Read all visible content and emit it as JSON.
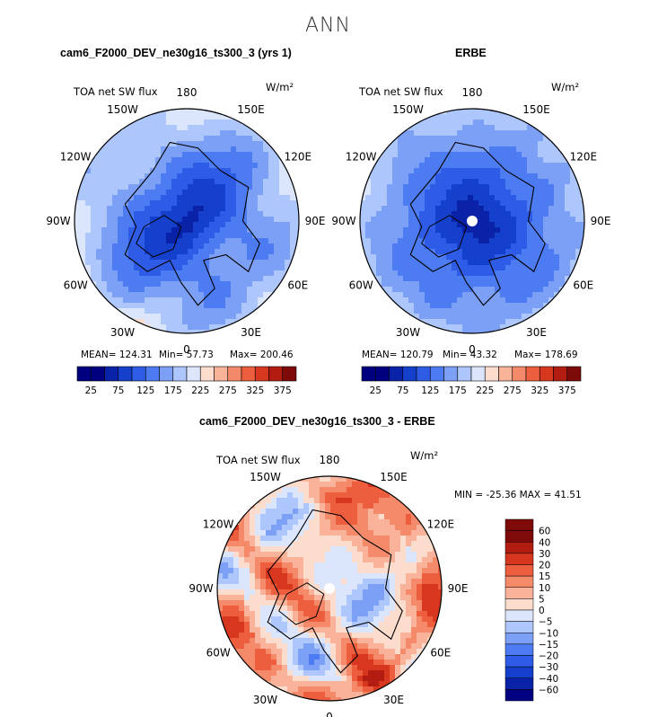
{
  "figure_title": "ANN",
  "chart_data": [
    {
      "type": "heatmap",
      "projection": "north-polar-stereographic",
      "title": "cam6_F2000_DEV_ne30g16_ts300_3 (yrs 1)",
      "variable": "TOA net SW flux",
      "units": "W/m²",
      "stats": {
        "mean": "124.31",
        "min": "57.73",
        "max": "200.46"
      },
      "stat_labels": {
        "mean": "MEAN= 124.31",
        "min": "Min=  57.73",
        "max": "Max= 200.46"
      },
      "colorbar_levels": [
        25,
        50,
        75,
        100,
        125,
        150,
        175,
        200,
        225,
        250,
        275,
        300,
        325,
        350,
        375
      ],
      "colorbar_ticks": [
        "25",
        "75",
        "125",
        "175",
        "225",
        "275",
        "325",
        "375"
      ]
    },
    {
      "type": "heatmap",
      "projection": "north-polar-stereographic",
      "title": "ERBE",
      "variable": "TOA net SW flux",
      "units": "W/m²",
      "stats": {
        "mean": "120.79",
        "min": "43.32",
        "max": "178.69"
      },
      "stat_labels": {
        "mean": "MEAN= 120.79",
        "min": "Min=  43.32",
        "max": "Max= 178.69"
      },
      "colorbar_levels": [
        25,
        50,
        75,
        100,
        125,
        150,
        175,
        200,
        225,
        250,
        275,
        300,
        325,
        350,
        375
      ],
      "colorbar_ticks": [
        "25",
        "75",
        "125",
        "175",
        "225",
        "275",
        "325",
        "375"
      ]
    },
    {
      "type": "heatmap",
      "projection": "north-polar-stereographic",
      "title": "cam6_F2000_DEV_ne30g16_ts300_3 - ERBE",
      "variable": "TOA net SW flux",
      "units": "W/m²",
      "stats": {
        "min": "-25.36",
        "max": "41.51"
      },
      "stat_line": "MIN = -25.36 MAX =   41.51",
      "colorbar_levels": [
        -60,
        -40,
        -30,
        -20,
        -15,
        -10,
        -5,
        0,
        5,
        10,
        15,
        20,
        30,
        40,
        60
      ],
      "colorbar_ticks": [
        "60",
        "40",
        "30",
        "20",
        "15",
        "10",
        "5",
        "0",
        "−5",
        "−10",
        "−15",
        "−20",
        "−30",
        "−40",
        "−60"
      ]
    }
  ],
  "longitude_labels": [
    "180",
    "150E",
    "120E",
    "90E",
    "60E",
    "30E",
    "0",
    "30W",
    "60W",
    "90W",
    "120W",
    "150W"
  ],
  "colors": {
    "abs_palette": [
      "#000080",
      "#0a22a8",
      "#1440cc",
      "#2e5ce6",
      "#4d7cf2",
      "#7da0f7",
      "#adc6fb",
      "#dbe6fd",
      "#fcdccc",
      "#f9b39a",
      "#f48a6a",
      "#ec5e3d",
      "#d8371f",
      "#b31c10",
      "#7e0a0a"
    ],
    "diff_palette": [
      "#000080",
      "#0a22a8",
      "#1440cc",
      "#2e5ce6",
      "#4d7cf2",
      "#7da0f7",
      "#adc6fb",
      "#dbe6fd",
      "#fcdccc",
      "#f9b39a",
      "#f48a6a",
      "#ec5e3d",
      "#d8371f",
      "#b31c10",
      "#7e0a0a"
    ]
  }
}
